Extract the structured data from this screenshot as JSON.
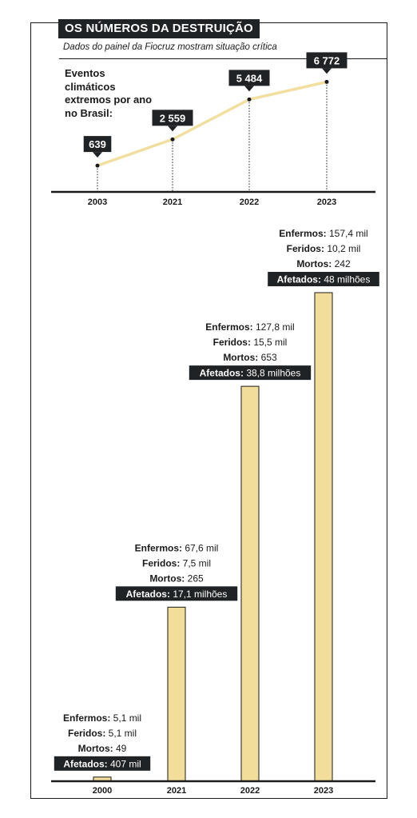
{
  "header": {
    "title": "OS NÚMEROS DA DESTRUIÇÃO",
    "subtitle": "Dados do painel da Fiocruz mostram situação crítica"
  },
  "chart_data": [
    {
      "type": "line",
      "ylabel": "Eventos climáticos extremos por ano no Brasil:",
      "categories": [
        "2003",
        "2021",
        "2022",
        "2023"
      ],
      "values": [
        639,
        2559,
        5484,
        6772
      ],
      "value_labels": [
        "639",
        "2 559",
        "5 484",
        "6 772"
      ],
      "line_color": "#f1df9f",
      "ylim": [
        0,
        7500
      ]
    },
    {
      "type": "bar",
      "categories": [
        "2000",
        "2021",
        "2022",
        "2023"
      ],
      "values": [
        0.407,
        17.1,
        38.8,
        48
      ],
      "bar_color": "#f3dd9a",
      "bar_edge_color": "#1a1a1a",
      "ylim": [
        0,
        52
      ],
      "annotations": [
        {
          "enfermos_label": "Enfermos:",
          "enfermos": "5,1 mil",
          "feridos_label": "Feridos:",
          "feridos": "5,1 mil",
          "mortos_label": "Mortos:",
          "mortos": "49",
          "afetados_label": "Afetados:",
          "afetados": "407 mil"
        },
        {
          "enfermos_label": "Enfermos:",
          "enfermos": "67,6 mil",
          "feridos_label": "Feridos:",
          "feridos": "7,5 mil",
          "mortos_label": "Mortos:",
          "mortos": "265",
          "afetados_label": "Afetados:",
          "afetados": "17,1 milhões"
        },
        {
          "enfermos_label": "Enfermos:",
          "enfermos": "127,8 mil",
          "feridos_label": "Feridos:",
          "feridos": "15,5 mil",
          "mortos_label": "Mortos:",
          "mortos": "653",
          "afetados_label": "Afetados:",
          "afetados": "38,8 milhões"
        },
        {
          "enfermos_label": "Enfermos:",
          "enfermos": "157,4 mil",
          "feridos_label": "Feridos:",
          "feridos": "10,2 mil",
          "mortos_label": "Mortos:",
          "mortos": "242",
          "afetados_label": "Afetados:",
          "afetados": "48 milhões"
        }
      ]
    }
  ]
}
